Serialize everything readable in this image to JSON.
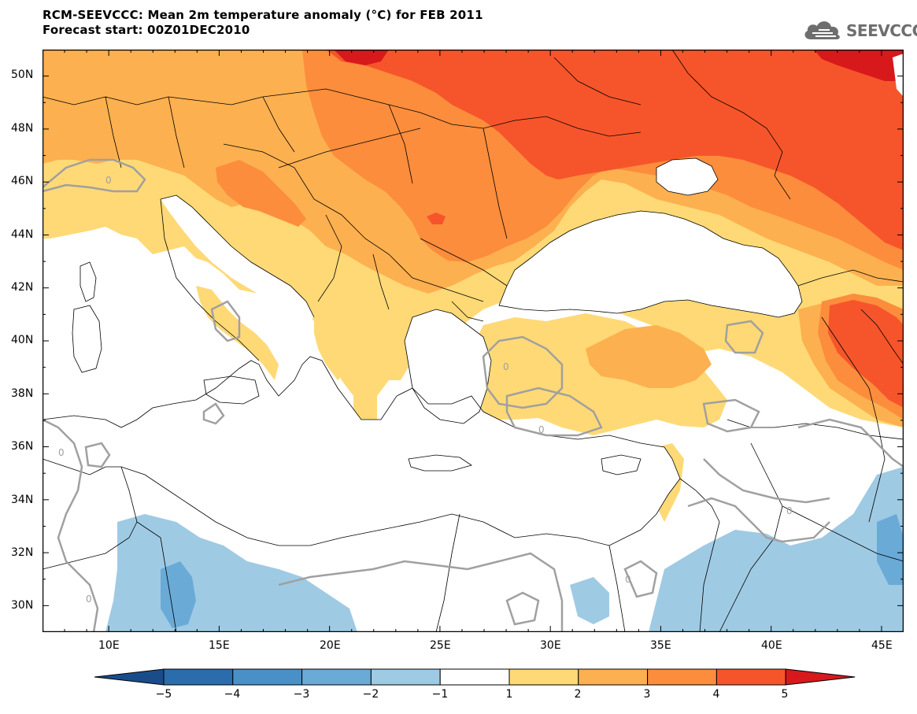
{
  "header": {
    "title_line1": "RCM-SEEVCCC: Mean 2m temperature anomaly (°C) for FEB 2011",
    "title_line2": "Forecast start: 00Z01DEC2010",
    "logo_text": "SEEVCCC"
  },
  "map": {
    "lon_range": [
      7,
      46
    ],
    "lat_range": [
      29,
      51
    ],
    "lat_ticks": [
      "50N",
      "48N",
      "46N",
      "44N",
      "42N",
      "40N",
      "38N",
      "36N",
      "34N",
      "32N",
      "30N"
    ],
    "lon_ticks": [
      "10E",
      "15E",
      "20E",
      "25E",
      "30E",
      "35E",
      "40E",
      "45E"
    ],
    "contour_label": "0"
  },
  "legend": {
    "labels": [
      "−5",
      "−4",
      "−3",
      "−2",
      "−1",
      "1",
      "2",
      "3",
      "4",
      "5"
    ],
    "colors": [
      "#1a4c8a",
      "#2b6cad",
      "#4a90c8",
      "#6aaad7",
      "#9fcae4",
      "#ffffff",
      "#fed976",
      "#fdb04f",
      "#fc8d3c",
      "#f6552b",
      "#d7191c"
    ]
  },
  "colors": {
    "anomaly_1_2": "#fed976",
    "anomaly_2_3": "#fdb04f",
    "anomaly_3_4": "#fc8d3c",
    "anomaly_4_5": "#f6552b",
    "anomaly_gt5": "#d7191c",
    "anomaly_m1_m2": "#9fcae4",
    "anomaly_m2_m3": "#6aaad7"
  }
}
